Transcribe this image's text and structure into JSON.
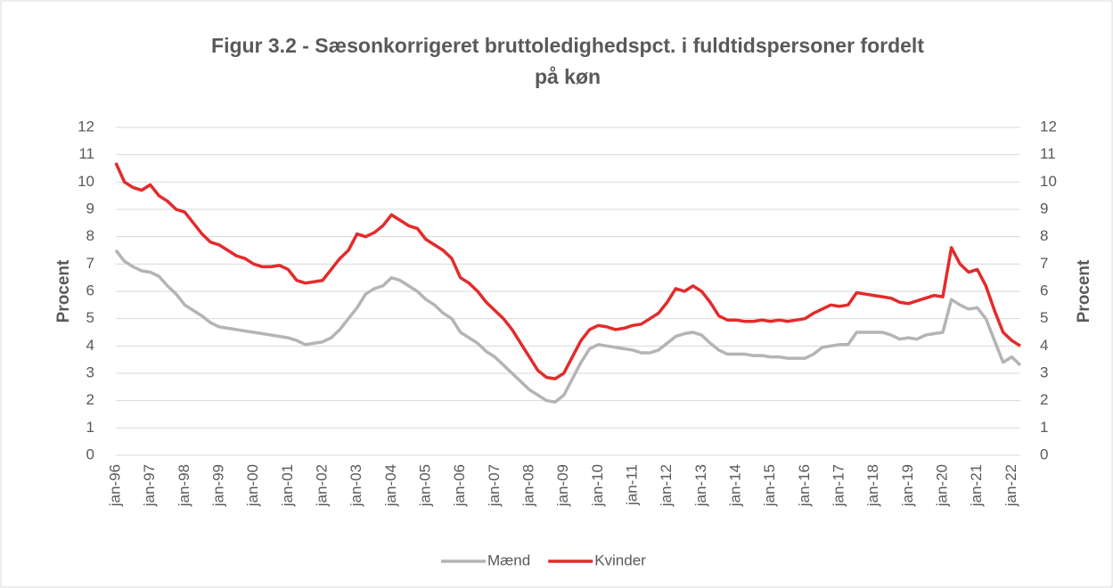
{
  "chart_data": {
    "type": "line",
    "title": "Figur 3.2 - Sæsonkorrigeret bruttoledighedspct. i fuldtidspersoner fordelt på køn",
    "ylabel": "Procent",
    "y2label": "Procent",
    "categories": [
      "jan-96",
      null,
      null,
      null,
      "jan-97",
      null,
      null,
      null,
      "jan-98",
      null,
      null,
      null,
      "jan-99",
      null,
      null,
      null,
      "jan-00",
      null,
      null,
      null,
      "jan-01",
      null,
      null,
      null,
      "jan-02",
      null,
      null,
      null,
      "jan-03",
      null,
      null,
      null,
      "jan-04",
      null,
      null,
      null,
      "jan-05",
      null,
      null,
      null,
      "jan-06",
      null,
      null,
      null,
      "jan-07",
      null,
      null,
      null,
      "jan-08",
      null,
      null,
      null,
      "jan-09",
      null,
      null,
      null,
      "jan-10",
      null,
      null,
      null,
      "jan-11",
      null,
      null,
      null,
      "jan-12",
      null,
      null,
      null,
      "jan-13",
      null,
      null,
      null,
      "jan-14",
      null,
      null,
      null,
      "jan-15",
      null,
      null,
      null,
      "jan-16",
      null,
      null,
      null,
      "jan-17",
      null,
      null,
      null,
      "jan-18",
      null,
      null,
      null,
      "jan-19",
      null,
      null,
      null,
      "jan-20",
      null,
      null,
      null,
      "jan-21",
      null,
      null,
      null,
      "jan-22",
      null
    ],
    "series": [
      {
        "name": "Mænd",
        "color": "#b4b4b8",
        "values": [
          7.5,
          7.1,
          6.9,
          6.75,
          6.7,
          6.55,
          6.2,
          5.9,
          5.5,
          5.3,
          5.1,
          4.85,
          4.7,
          4.65,
          4.6,
          4.55,
          4.5,
          4.45,
          4.4,
          4.35,
          4.3,
          4.2,
          4.05,
          4.1,
          4.15,
          4.3,
          4.6,
          5.0,
          5.4,
          5.9,
          6.1,
          6.2,
          6.5,
          6.4,
          6.2,
          6.0,
          5.7,
          5.5,
          5.2,
          5.0,
          4.5,
          4.3,
          4.1,
          3.8,
          3.6,
          3.3,
          3.0,
          2.7,
          2.4,
          2.2,
          2.0,
          1.95,
          2.2,
          2.8,
          3.4,
          3.9,
          4.05,
          4.0,
          3.95,
          3.9,
          3.85,
          3.75,
          3.75,
          3.85,
          4.1,
          4.35,
          4.45,
          4.5,
          4.4,
          4.1,
          3.85,
          3.7,
          3.7,
          3.7,
          3.65,
          3.65,
          3.6,
          3.6,
          3.55,
          3.55,
          3.55,
          3.7,
          3.95,
          4.0,
          4.05,
          4.05,
          4.5,
          4.5,
          4.5,
          4.5,
          4.4,
          4.25,
          4.3,
          4.25,
          4.4,
          4.45,
          4.5,
          5.7,
          5.5,
          5.35,
          5.4,
          5.0,
          4.2,
          3.4,
          3.6,
          3.3
        ]
      },
      {
        "name": "Kvinder",
        "color": "#e32b2b",
        "values": [
          10.7,
          10.0,
          9.8,
          9.7,
          9.9,
          9.5,
          9.3,
          9.0,
          8.9,
          8.5,
          8.1,
          7.8,
          7.7,
          7.5,
          7.3,
          7.2,
          7.0,
          6.9,
          6.9,
          6.95,
          6.8,
          6.4,
          6.3,
          6.35,
          6.4,
          6.8,
          7.2,
          7.5,
          8.1,
          8.0,
          8.15,
          8.4,
          8.8,
          8.6,
          8.4,
          8.3,
          7.9,
          7.7,
          7.5,
          7.2,
          6.5,
          6.3,
          6.0,
          5.6,
          5.3,
          5.0,
          4.6,
          4.1,
          3.6,
          3.1,
          2.85,
          2.8,
          3.0,
          3.6,
          4.2,
          4.6,
          4.75,
          4.7,
          4.6,
          4.65,
          4.75,
          4.8,
          5.0,
          5.2,
          5.6,
          6.1,
          6.0,
          6.2,
          6.0,
          5.6,
          5.1,
          4.95,
          4.95,
          4.9,
          4.9,
          4.95,
          4.9,
          4.95,
          4.9,
          4.95,
          5.0,
          5.2,
          5.35,
          5.5,
          5.45,
          5.5,
          5.95,
          5.9,
          5.85,
          5.8,
          5.75,
          5.6,
          5.55,
          5.65,
          5.75,
          5.85,
          5.8,
          7.6,
          7.0,
          6.7,
          6.8,
          6.2,
          5.3,
          4.5,
          4.2,
          4.0
        ]
      }
    ],
    "ylim": [
      0,
      12
    ],
    "yticks": [
      0,
      1,
      2,
      3,
      4,
      5,
      6,
      7,
      8,
      9,
      10,
      11,
      12
    ],
    "y2lim": [
      0,
      12
    ],
    "y2ticks": [
      0,
      1,
      2,
      3,
      4,
      5,
      6,
      7,
      8,
      9,
      10,
      11,
      12
    ],
    "grid": true,
    "legend": "bottom"
  }
}
